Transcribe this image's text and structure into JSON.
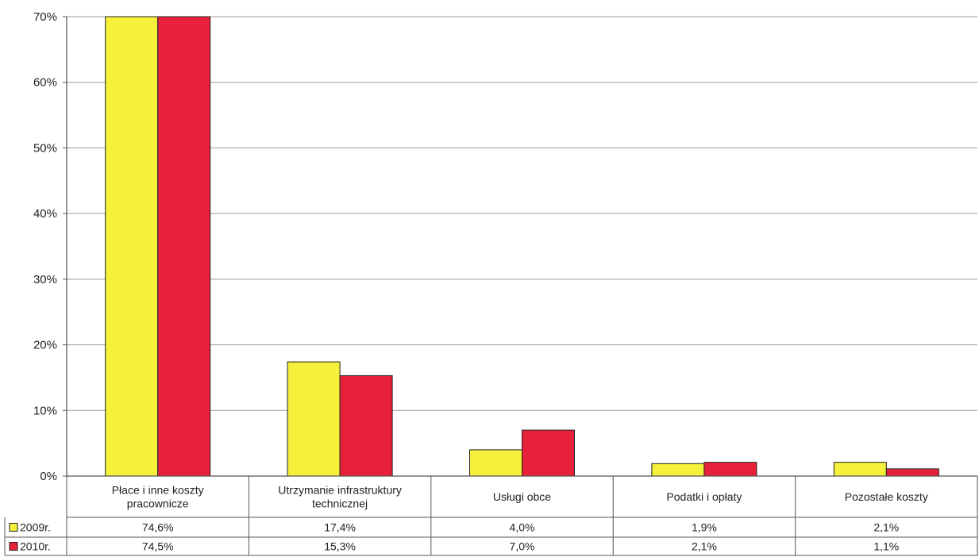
{
  "chart_data": {
    "type": "bar",
    "categories": [
      [
        "Płace i inne koszty",
        "pracownicze"
      ],
      [
        "Utrzymanie infrastruktury",
        "technicznej"
      ],
      [
        "Usługi obce"
      ],
      [
        "Podatki i opłaty"
      ],
      [
        "Pozostałe koszty"
      ]
    ],
    "series": [
      {
        "name": "2009r.",
        "color": "#f5f03a",
        "values": [
          74.6,
          17.4,
          4.0,
          1.9,
          2.1
        ],
        "labels": [
          "74,6%",
          "17,4%",
          "4,0%",
          "1,9%",
          "2,1%"
        ]
      },
      {
        "name": "2010r.",
        "color": "#e8213a",
        "values": [
          74.5,
          15.3,
          7.0,
          2.1,
          1.1
        ],
        "labels": [
          "74,5%",
          "15,3%",
          "7,0%",
          "2,1%",
          "1,1%"
        ]
      }
    ],
    "ylim": [
      0,
      70
    ],
    "yticks": [
      0,
      10,
      20,
      30,
      40,
      50,
      60,
      70
    ],
    "ytick_labels": [
      "0%",
      "10%",
      "20%",
      "30%",
      "40%",
      "50%",
      "60%",
      "70%"
    ],
    "grid": true,
    "legend": "data-table"
  }
}
